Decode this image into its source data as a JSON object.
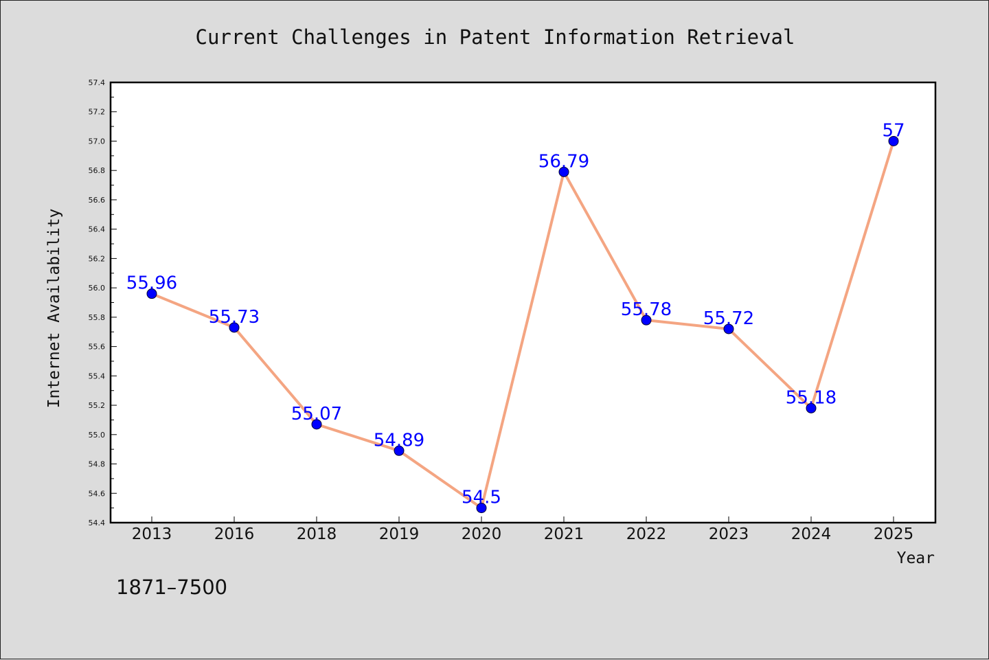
{
  "chart_data": {
    "type": "line",
    "title": "Current Challenges in Patent Information Retrieval",
    "xlabel": "Year",
    "ylabel": "Internet Availability",
    "categories": [
      "2013",
      "2016",
      "2018",
      "2019",
      "2020",
      "2021",
      "2022",
      "2023",
      "2024",
      "2025"
    ],
    "series": [
      {
        "values": [
          55.96,
          55.73,
          55.07,
          54.89,
          54.5,
          56.79,
          55.78,
          55.72,
          55.18,
          57
        ],
        "data_labels": [
          "55.96",
          "55.73",
          "55.07",
          "54.89",
          "54.5",
          "56.79",
          "55.78",
          "55.72",
          "55.18",
          "57"
        ],
        "line_color": "#f4a582",
        "marker_color": "#0000ff"
      }
    ],
    "ylim": [
      54.4,
      57.4
    ],
    "yticks": [
      "54.4",
      "54.6",
      "54.8",
      "55.0",
      "55.2",
      "55.4",
      "55.6",
      "55.8",
      "56.0",
      "56.2",
      "56.4",
      "56.6",
      "56.8",
      "57.0",
      "57.2",
      "57.4"
    ],
    "grid": false,
    "legend": "none",
    "footnote": "1871–7500"
  }
}
